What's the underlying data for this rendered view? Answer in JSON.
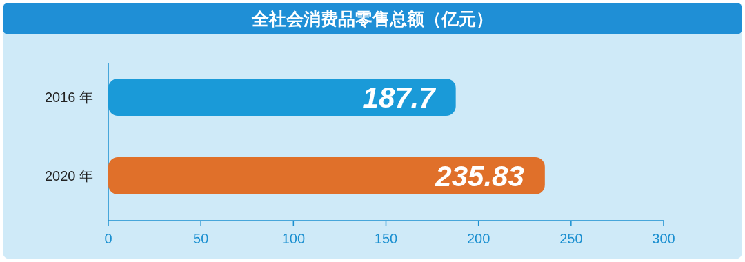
{
  "chart_data": {
    "type": "bar",
    "orientation": "horizontal",
    "title": "全社会消费品零售总额（亿元）",
    "categories": [
      "2016 年",
      "2020 年"
    ],
    "values": [
      187.7,
      235.83
    ],
    "colors": [
      "#1a9ad8",
      "#e0702a"
    ],
    "xlim": [
      0,
      300
    ],
    "xticks": [
      0,
      50,
      100,
      150,
      200,
      250,
      300
    ],
    "data_labels": true
  }
}
